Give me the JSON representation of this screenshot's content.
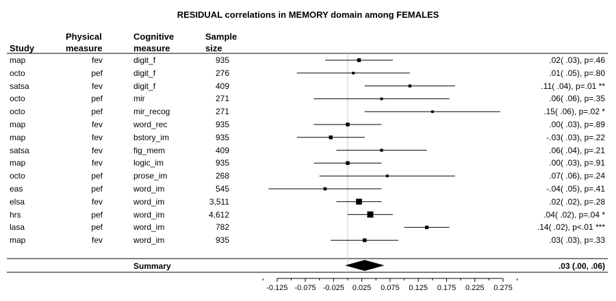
{
  "title": "RESIDUAL correlations in MEMORY domain among FEMALES",
  "headers": {
    "study": "Study",
    "physical": [
      "Physical",
      "measure"
    ],
    "cognitive": [
      "Cognitive",
      "measure"
    ],
    "sample": [
      "Sample",
      "size"
    ]
  },
  "summary": {
    "label": "Summary",
    "value": ".03 (.00, .06)"
  },
  "chart_data": {
    "type": "forest",
    "xticks": [
      "-0.125",
      "-0.075",
      "-0.025",
      "0.025",
      "0.075",
      "0.125",
      "0.175",
      "0.225",
      "0.275"
    ],
    "xlim": [
      -0.15,
      0.3
    ],
    "reference_line": 0,
    "rows": [
      {
        "study": "map",
        "physical": "fev",
        "cognitive": "digit_f",
        "n": "935",
        "estimate": 0.02,
        "lo": -0.04,
        "hi": 0.08,
        "result": ".02( .03), p=.46"
      },
      {
        "study": "octo",
        "physical": "pef",
        "cognitive": "digit_f",
        "n": "276",
        "estimate": 0.01,
        "lo": -0.09,
        "hi": 0.11,
        "result": ".01( .05), p=.80"
      },
      {
        "study": "satsa",
        "physical": "fev",
        "cognitive": "digit_f",
        "n": "409",
        "estimate": 0.11,
        "lo": 0.03,
        "hi": 0.19,
        "result": ".11( .04), p=.01 **"
      },
      {
        "study": "octo",
        "physical": "pef",
        "cognitive": "mir",
        "n": "271",
        "estimate": 0.06,
        "lo": -0.06,
        "hi": 0.18,
        "result": ".06( .06), p=.35"
      },
      {
        "study": "octo",
        "physical": "pef",
        "cognitive": "mir_recog",
        "n": "271",
        "estimate": 0.15,
        "lo": 0.03,
        "hi": 0.27,
        "result": ".15( .06), p=.02 *"
      },
      {
        "study": "map",
        "physical": "fev",
        "cognitive": "word_rec",
        "n": "935",
        "estimate": 0.0,
        "lo": -0.06,
        "hi": 0.06,
        "result": ".00( .03), p=.89"
      },
      {
        "study": "map",
        "physical": "fev",
        "cognitive": "bstory_im",
        "n": "935",
        "estimate": -0.03,
        "lo": -0.09,
        "hi": 0.03,
        "result": "-.03( .03), p=.22"
      },
      {
        "study": "satsa",
        "physical": "fev",
        "cognitive": "fig_mem",
        "n": "409",
        "estimate": 0.06,
        "lo": -0.02,
        "hi": 0.14,
        "result": ".06( .04), p=.21"
      },
      {
        "study": "map",
        "physical": "fev",
        "cognitive": "logic_im",
        "n": "935",
        "estimate": 0.0,
        "lo": -0.06,
        "hi": 0.06,
        "result": ".00( .03), p=.91"
      },
      {
        "study": "octo",
        "physical": "pef",
        "cognitive": "prose_im",
        "n": "268",
        "estimate": 0.07,
        "lo": -0.05,
        "hi": 0.19,
        "result": ".07( .06), p=.24"
      },
      {
        "study": "eas",
        "physical": "pef",
        "cognitive": "word_im",
        "n": "545",
        "estimate": -0.04,
        "lo": -0.14,
        "hi": 0.06,
        "result": "-.04( .05), p=.41"
      },
      {
        "study": "elsa",
        "physical": "fev",
        "cognitive": "word_im",
        "n": "3,511",
        "estimate": 0.02,
        "lo": -0.02,
        "hi": 0.06,
        "result": ".02( .02), p=.28"
      },
      {
        "study": "hrs",
        "physical": "pef",
        "cognitive": "word_im",
        "n": "4,612",
        "estimate": 0.04,
        "lo": 0.0,
        "hi": 0.08,
        "result": ".04( .02), p=.04 *"
      },
      {
        "study": "lasa",
        "physical": "pef",
        "cognitive": "word_im",
        "n": "782",
        "estimate": 0.14,
        "lo": 0.1,
        "hi": 0.18,
        "result": ".14( .02), p<.01 ***"
      },
      {
        "study": "map",
        "physical": "fev",
        "cognitive": "word_im",
        "n": "935",
        "estimate": 0.03,
        "lo": -0.03,
        "hi": 0.09,
        "result": ".03( .03), p=.33"
      }
    ],
    "summary": {
      "estimate": 0.03,
      "lo": 0.0,
      "hi": 0.06
    }
  }
}
